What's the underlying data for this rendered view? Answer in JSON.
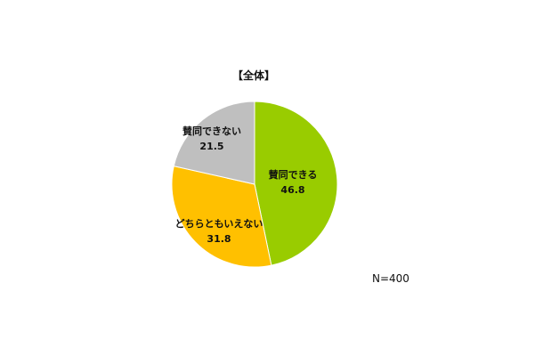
{
  "chart_data": {
    "type": "pie",
    "title": "【全体】",
    "slices": [
      {
        "label": "賛同できる",
        "value": 46.8,
        "value_label": "46.8",
        "color": "#99cc00"
      },
      {
        "label": "どちらともいえない",
        "value": 31.8,
        "value_label": "31.8",
        "color": "#ffc000"
      },
      {
        "label": "賛同できない",
        "value": 21.5,
        "value_label": "21.5",
        "color": "#bfbfbf"
      }
    ],
    "direction": "clockwise",
    "start": "12 o'clock",
    "note": "N=400"
  }
}
